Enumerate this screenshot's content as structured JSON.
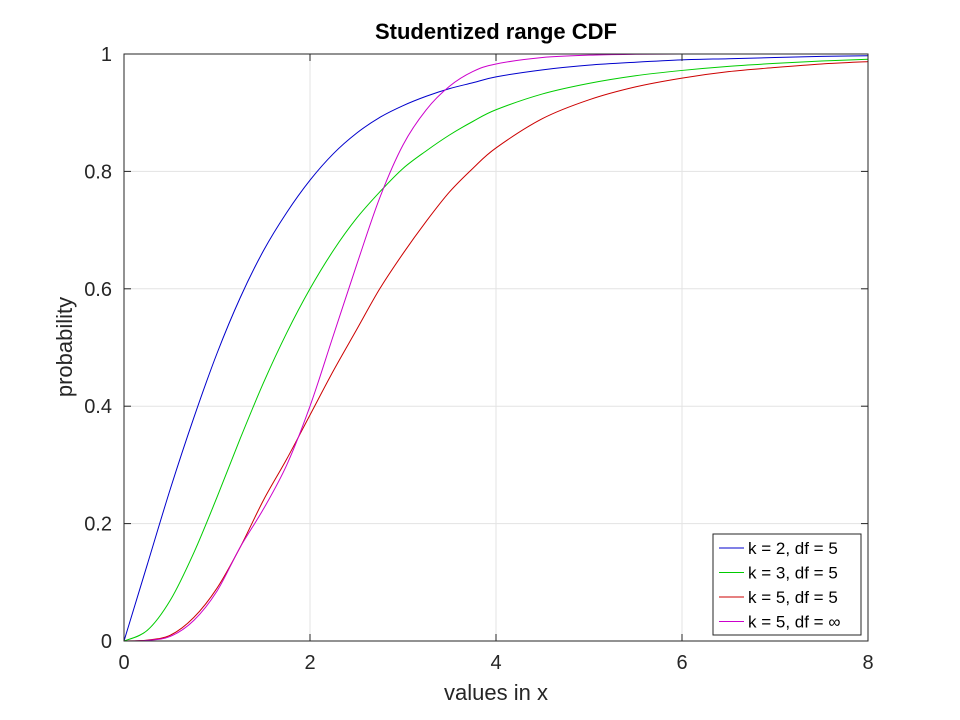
{
  "chart_data": {
    "type": "line",
    "title": "Studentized range CDF",
    "xlabel": "values in x",
    "ylabel": "probability",
    "xlim": [
      0,
      8
    ],
    "ylim": [
      0,
      1
    ],
    "xticks": [
      0,
      2,
      4,
      6,
      8
    ],
    "yticks": [
      0,
      0.2,
      0.4,
      0.6,
      0.8,
      1
    ],
    "xtick_labels": [
      "0",
      "2",
      "4",
      "6",
      "8"
    ],
    "ytick_labels": [
      "0",
      "0.2",
      "0.4",
      "0.6",
      "0.8",
      "1"
    ],
    "grid": true,
    "legend_position": "bottom-right",
    "x": [
      0,
      0.25,
      0.5,
      0.75,
      1,
      1.25,
      1.5,
      1.75,
      2,
      2.25,
      2.5,
      2.75,
      3,
      3.25,
      3.5,
      3.75,
      4,
      4.5,
      5,
      5.5,
      6,
      6.5,
      7,
      7.5,
      8
    ],
    "series": [
      {
        "name": "k = 2, df = 5",
        "color": "#0000cc",
        "values": [
          0,
          0.13,
          0.26,
          0.38,
          0.49,
          0.585,
          0.665,
          0.73,
          0.785,
          0.83,
          0.865,
          0.892,
          0.912,
          0.928,
          0.941,
          0.951,
          0.961,
          0.973,
          0.981,
          0.986,
          0.99,
          0.992,
          0.994,
          0.996,
          0.997
        ]
      },
      {
        "name": "k = 3, df = 5",
        "color": "#00cc00",
        "values": [
          0,
          0.018,
          0.07,
          0.15,
          0.245,
          0.345,
          0.44,
          0.525,
          0.6,
          0.665,
          0.72,
          0.765,
          0.805,
          0.835,
          0.862,
          0.885,
          0.905,
          0.932,
          0.95,
          0.963,
          0.972,
          0.979,
          0.984,
          0.988,
          0.991
        ]
      },
      {
        "name": "k = 5, df = 5",
        "color": "#cc0000",
        "values": [
          0,
          0.0015,
          0.01,
          0.04,
          0.09,
          0.16,
          0.24,
          0.31,
          0.385,
          0.46,
          0.53,
          0.6,
          0.66,
          0.715,
          0.765,
          0.805,
          0.84,
          0.89,
          0.922,
          0.944,
          0.959,
          0.97,
          0.977,
          0.983,
          0.987
        ]
      },
      {
        "name": "k = 5, df = ∞",
        "color": "#cc00cc",
        "values": [
          0,
          0.001,
          0.008,
          0.035,
          0.085,
          0.16,
          0.225,
          0.3,
          0.4,
          0.52,
          0.64,
          0.755,
          0.845,
          0.905,
          0.945,
          0.97,
          0.983,
          0.994,
          0.998,
          0.9995,
          1,
          1,
          1,
          1,
          1
        ]
      }
    ]
  }
}
